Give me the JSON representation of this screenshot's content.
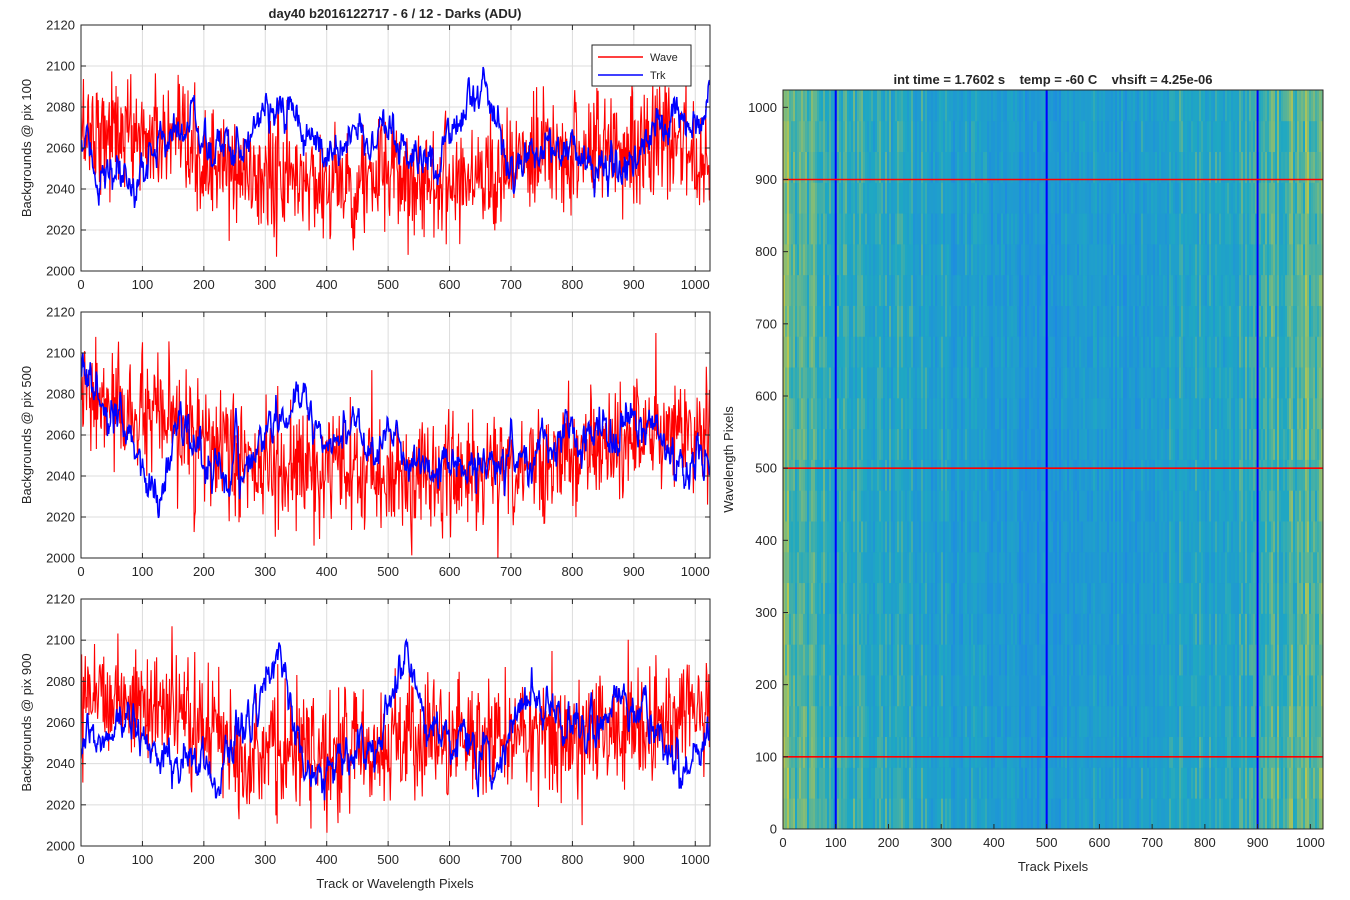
{
  "figure": {
    "background": "#ffffff"
  },
  "chart_data": [
    {
      "type": "line",
      "title": "day40 b2016122717 - 6 / 12 - Darks (ADU)",
      "xlabel": "",
      "ylabel": "Backgrounds @ pix 100",
      "xlim": [
        0,
        1024
      ],
      "ylim": [
        2000,
        2120
      ],
      "xticks": [
        0,
        100,
        200,
        300,
        400,
        500,
        600,
        700,
        800,
        900,
        1000
      ],
      "xtick_labels": [
        "0",
        "100",
        "200",
        "300",
        "400",
        "500",
        "600",
        "700",
        "800",
        "900",
        "1000"
      ],
      "yticks": [
        2000,
        2020,
        2040,
        2060,
        2080,
        2100,
        2120
      ],
      "ytick_labels": [
        "2000",
        "2020",
        "2040",
        "2060",
        "2080",
        "2100",
        "2120"
      ],
      "grid": true,
      "legend": {
        "placement": "top-right",
        "entries": [
          "Wave",
          "Trk"
        ]
      },
      "series": [
        {
          "name": "Wave",
          "color": "#ff0000",
          "n_points": 1024,
          "mean": 2052,
          "noise_sd": 14,
          "x_knots": [
            0,
            60,
            130,
            200,
            280,
            350,
            430,
            500,
            560,
            640,
            720,
            800,
            880,
            960,
            1024
          ],
          "y_knots": [
            2070,
            2068,
            2064,
            2052,
            2046,
            2045,
            2042,
            2046,
            2044,
            2047,
            2052,
            2058,
            2062,
            2063,
            2055
          ]
        },
        {
          "name": "Trk",
          "color": "#0000ff",
          "n_points": 1024,
          "mean": 2060,
          "noise_sd": 6,
          "x_knots": [
            0,
            40,
            80,
            120,
            170,
            220,
            260,
            300,
            340,
            400,
            450,
            500,
            560,
            620,
            660,
            700,
            760,
            820,
            880,
            940,
            1000,
            1024
          ],
          "y_knots": [
            2062,
            2045,
            2038,
            2060,
            2075,
            2058,
            2062,
            2085,
            2070,
            2058,
            2068,
            2062,
            2050,
            2078,
            2092,
            2048,
            2062,
            2055,
            2050,
            2066,
            2075,
            2084
          ]
        }
      ]
    },
    {
      "type": "line",
      "title": "",
      "xlabel": "",
      "ylabel": "Backgrounds @ pix 500",
      "xlim": [
        0,
        1024
      ],
      "ylim": [
        2000,
        2120
      ],
      "xticks": [
        0,
        100,
        200,
        300,
        400,
        500,
        600,
        700,
        800,
        900,
        1000
      ],
      "xtick_labels": [
        "0",
        "100",
        "200",
        "300",
        "400",
        "500",
        "600",
        "700",
        "800",
        "900",
        "1000"
      ],
      "yticks": [
        2000,
        2020,
        2040,
        2060,
        2080,
        2100,
        2120
      ],
      "ytick_labels": [
        "2000",
        "2020",
        "2040",
        "2060",
        "2080",
        "2100",
        "2120"
      ],
      "grid": true,
      "series": [
        {
          "name": "Wave",
          "color": "#ff0000",
          "n_points": 1024,
          "mean": 2052,
          "noise_sd": 14,
          "x_knots": [
            0,
            60,
            130,
            200,
            280,
            350,
            430,
            500,
            560,
            640,
            720,
            800,
            880,
            960,
            1024
          ],
          "y_knots": [
            2078,
            2072,
            2066,
            2056,
            2044,
            2042,
            2040,
            2040,
            2040,
            2042,
            2045,
            2050,
            2058,
            2062,
            2060
          ]
        },
        {
          "name": "Trk",
          "color": "#0000ff",
          "n_points": 1024,
          "mean": 2055,
          "noise_sd": 6,
          "x_knots": [
            0,
            30,
            60,
            100,
            130,
            160,
            200,
            260,
            300,
            360,
            400,
            450,
            500,
            540,
            600,
            640,
            700,
            740,
            800,
            870,
            900,
            960,
            1024
          ],
          "y_knots": [
            2098,
            2075,
            2062,
            2045,
            2028,
            2070,
            2045,
            2040,
            2062,
            2075,
            2058,
            2065,
            2055,
            2043,
            2048,
            2042,
            2050,
            2048,
            2058,
            2060,
            2074,
            2052,
            2040
          ]
        }
      ]
    },
    {
      "type": "line",
      "title": "",
      "xlabel": "Track or Wavelength Pixels",
      "ylabel": "Backgrounds @ pix 900",
      "xlim": [
        0,
        1024
      ],
      "ylim": [
        2000,
        2120
      ],
      "xticks": [
        0,
        100,
        200,
        300,
        400,
        500,
        600,
        700,
        800,
        900,
        1000
      ],
      "xtick_labels": [
        "0",
        "100",
        "200",
        "300",
        "400",
        "500",
        "600",
        "700",
        "800",
        "900",
        "1000"
      ],
      "yticks": [
        2000,
        2020,
        2040,
        2060,
        2080,
        2100,
        2120
      ],
      "ytick_labels": [
        "2000",
        "2020",
        "2040",
        "2060",
        "2080",
        "2100",
        "2120"
      ],
      "grid": true,
      "series": [
        {
          "name": "Wave",
          "color": "#ff0000",
          "n_points": 1024,
          "mean": 2055,
          "noise_sd": 14,
          "x_knots": [
            0,
            60,
            130,
            200,
            280,
            350,
            430,
            500,
            560,
            640,
            720,
            800,
            880,
            960,
            1024
          ],
          "y_knots": [
            2080,
            2072,
            2066,
            2058,
            2045,
            2044,
            2046,
            2050,
            2052,
            2052,
            2054,
            2056,
            2056,
            2062,
            2065
          ]
        },
        {
          "name": "Trk",
          "color": "#0000ff",
          "n_points": 1024,
          "mean": 2050,
          "noise_sd": 6,
          "x_knots": [
            0,
            40,
            80,
            120,
            170,
            220,
            260,
            300,
            330,
            360,
            420,
            480,
            530,
            560,
            620,
            680,
            720,
            780,
            820,
            880,
            940,
            980,
            1024
          ],
          "y_knots": [
            2045,
            2052,
            2065,
            2042,
            2042,
            2035,
            2058,
            2075,
            2092,
            2040,
            2038,
            2045,
            2098,
            2060,
            2050,
            2040,
            2075,
            2062,
            2058,
            2072,
            2055,
            2030,
            2055
          ]
        }
      ]
    },
    {
      "type": "heatmap",
      "title": "int time = 1.7602 s    temp = -60 C    vhsift = 4.25e-06",
      "xlabel": "Track Pixels",
      "ylabel": "Wavelength Pixels",
      "xlim": [
        0,
        1024
      ],
      "ylim": [
        0,
        1024
      ],
      "xticks": [
        0,
        100,
        200,
        300,
        400,
        500,
        600,
        700,
        800,
        900,
        1000
      ],
      "xtick_labels": [
        "0",
        "100",
        "200",
        "300",
        "400",
        "500",
        "600",
        "700",
        "800",
        "900",
        "1000"
      ],
      "yticks": [
        0,
        100,
        200,
        300,
        400,
        500,
        600,
        700,
        800,
        900,
        1000
      ],
      "ytick_labels": [
        "0",
        "100",
        "200",
        "300",
        "400",
        "500",
        "600",
        "700",
        "800",
        "900",
        "1000"
      ],
      "grid": false,
      "colors": {
        "low": "#1e88e5",
        "mid": "#1fa8c2",
        "high": "#c0c84a"
      },
      "column_profile": {
        "x_knots": [
          0,
          30,
          80,
          150,
          250,
          350,
          450,
          550,
          650,
          750,
          850,
          930,
          980,
          1024
        ],
        "level_knots": [
          0.78,
          0.62,
          0.55,
          0.5,
          0.42,
          0.32,
          0.24,
          0.24,
          0.3,
          0.4,
          0.48,
          0.58,
          0.68,
          0.72
        ]
      },
      "row_profile": {
        "y_knots": [
          0,
          200,
          400,
          600,
          800,
          1024
        ],
        "level_knots": [
          0.06,
          0.0,
          -0.04,
          0.0,
          0.0,
          0.04
        ]
      },
      "vertical_lines": {
        "x": [
          100,
          500,
          900
        ],
        "color": "#0000ff"
      },
      "horizontal_lines": {
        "y": [
          100,
          500,
          900
        ],
        "color": "#ff0000"
      }
    }
  ]
}
